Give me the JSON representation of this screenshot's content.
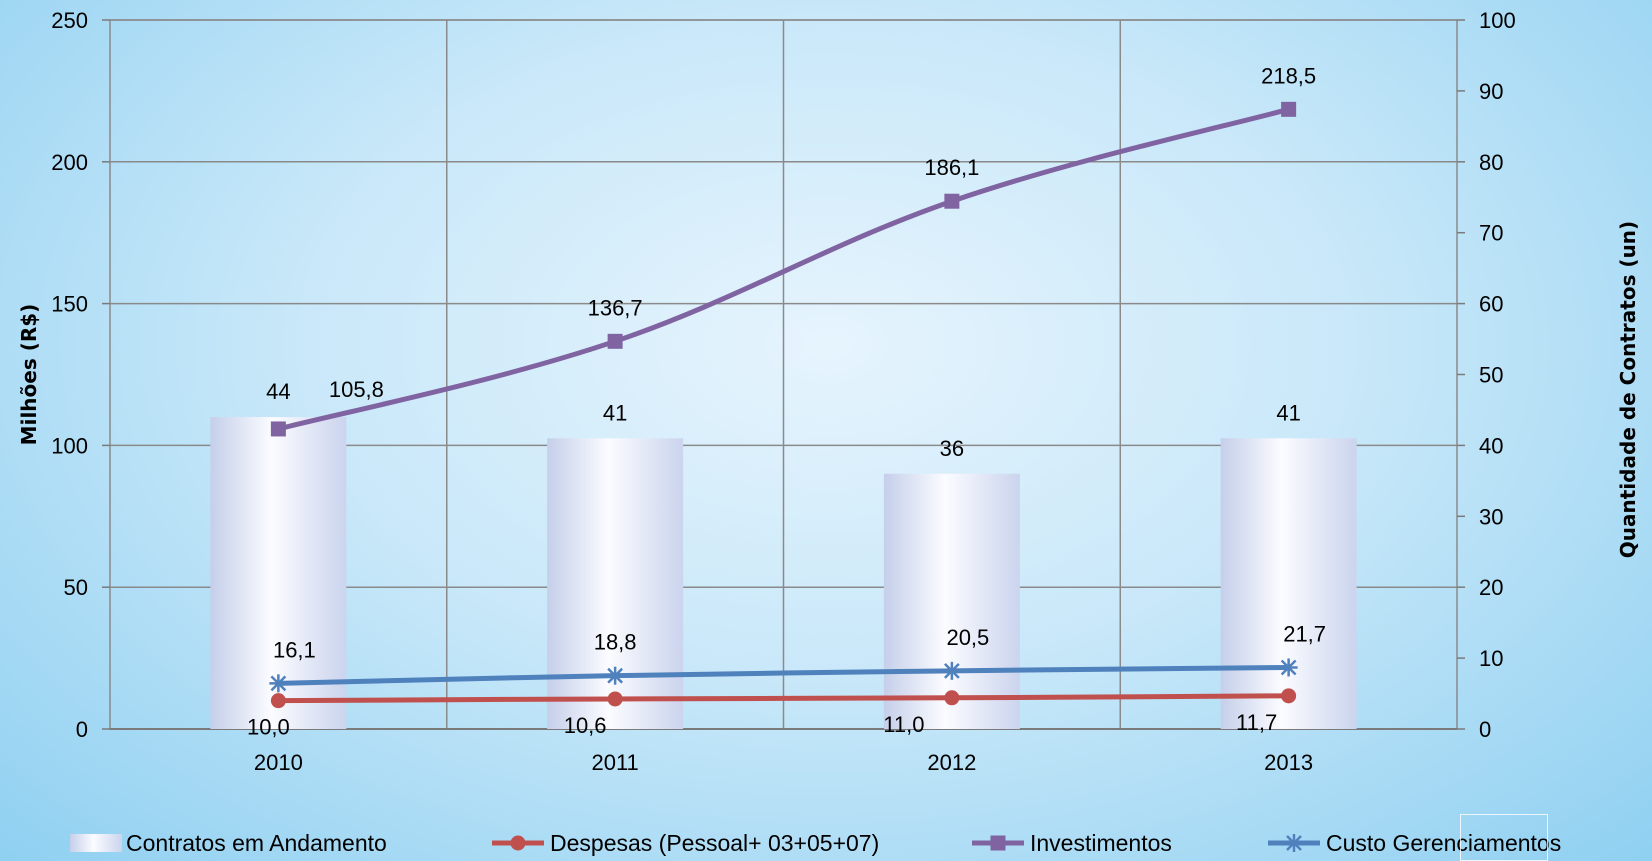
{
  "chart_data": {
    "type": "bar",
    "categories": [
      "2010",
      "2011",
      "2012",
      "2013"
    ],
    "y_left": {
      "label": "Milhões (R$)",
      "lim": [
        0,
        250
      ],
      "ticks": [
        0,
        50,
        100,
        150,
        200,
        250
      ]
    },
    "y_right": {
      "label": "Quantidade de  Contratos (un)",
      "lim": [
        0,
        100
      ],
      "ticks": [
        0,
        10,
        20,
        30,
        40,
        50,
        60,
        70,
        80,
        90,
        100
      ]
    },
    "grid": true,
    "legend_position": "bottom",
    "series": [
      {
        "name": "Contratos em Andamento",
        "type": "bar",
        "axis": "right",
        "values": [
          44,
          41,
          36,
          41
        ],
        "labels": [
          "44",
          "41",
          "36",
          "41"
        ],
        "color": "#c8d2ec"
      },
      {
        "name": "Despesas (Pessoal+ 03+05+07)",
        "type": "line",
        "axis": "left",
        "marker": "circle",
        "values": [
          10.0,
          10.6,
          11.0,
          11.7
        ],
        "labels": [
          "10,0",
          "10,6",
          "11,0",
          "11,7"
        ],
        "color": "#c0504d"
      },
      {
        "name": "Investimentos",
        "type": "line",
        "axis": "left",
        "marker": "square",
        "values": [
          105.8,
          136.7,
          186.1,
          218.5
        ],
        "labels": [
          "105,8",
          "136,7",
          "186,1",
          "218,5"
        ],
        "color": "#8064a2"
      },
      {
        "name": "Custo Gerenciamentos",
        "type": "line",
        "axis": "left",
        "marker": "asterisk",
        "values": [
          16.1,
          18.8,
          20.5,
          21.7
        ],
        "labels": [
          "16,1",
          "18,8",
          "20,5",
          "21,7"
        ],
        "color": "#4f81bd"
      }
    ]
  }
}
